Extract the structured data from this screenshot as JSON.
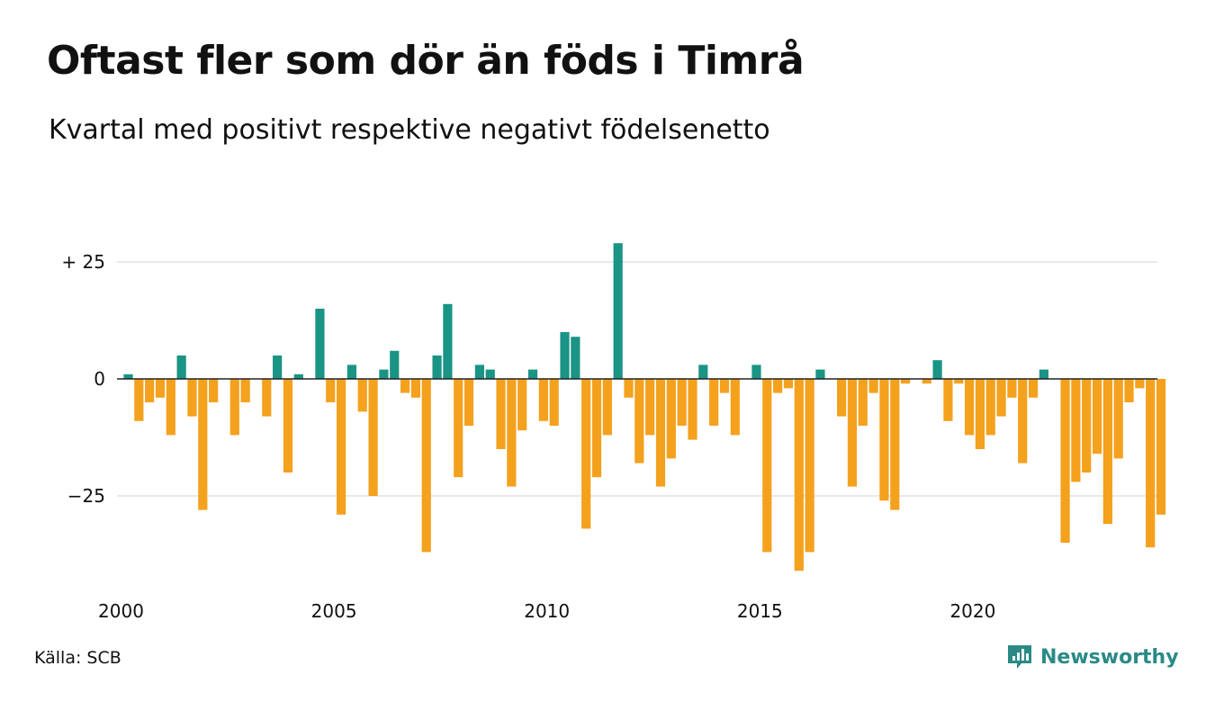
{
  "title": "Oftast fler som dör än föds i Timrå",
  "subtitle": "Kvartal med positivt respektive negativt födelsenetto",
  "source": "Källa: SCB",
  "brand": {
    "name": "Newsworthy",
    "icon": "newsworthy-logo-icon"
  },
  "colors": {
    "positive": "#1a9485",
    "negative": "#f4a11e",
    "grid": "#e2e2e2"
  },
  "chart_data": {
    "type": "bar",
    "title": "Oftast fler som dör än föds i Timrå",
    "subtitle": "Kvartal med positivt respektive negativt födelsenetto",
    "xlabel": "",
    "ylabel": "",
    "start_year": 2000,
    "x_ticks": [
      "2000",
      "2005",
      "2010",
      "2015",
      "2020"
    ],
    "y_ticks": [
      {
        "value": 25,
        "label": "+ 25"
      },
      {
        "value": 0,
        "label": "0"
      },
      {
        "value": -25,
        "label": "−25"
      }
    ],
    "ylim": [
      -42,
      29
    ],
    "grid": true,
    "values": [
      1,
      -9,
      -5,
      -4,
      -12,
      5,
      -8,
      -28,
      -5,
      0,
      -12,
      -5,
      0,
      -8,
      5,
      -20,
      1,
      0,
      15,
      -5,
      -29,
      3,
      -7,
      -25,
      2,
      6,
      -3,
      -4,
      -37,
      5,
      16,
      -21,
      -10,
      3,
      2,
      -15,
      -23,
      -11,
      2,
      -9,
      -10,
      10,
      9,
      -32,
      -21,
      -12,
      29,
      -4,
      -18,
      -12,
      -23,
      -17,
      -10,
      -13,
      3,
      -10,
      -3,
      -12,
      0,
      3,
      -37,
      -3,
      -2,
      -41,
      -37,
      2,
      0,
      -8,
      -23,
      -10,
      -3,
      -26,
      -28,
      -1,
      0,
      -1,
      4,
      -9,
      -1,
      -12,
      -15,
      -12,
      -8,
      -4,
      -18,
      -4,
      2,
      0,
      -35,
      -22,
      -20,
      -16,
      -31,
      -17,
      -5,
      -2,
      -36,
      -29
    ]
  }
}
